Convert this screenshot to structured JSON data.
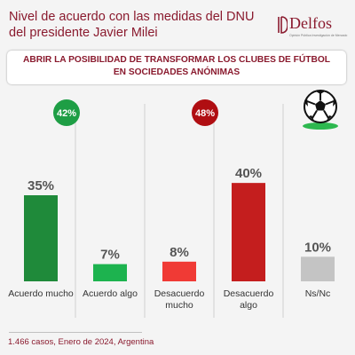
{
  "header": {
    "title": "Nivel de acuerdo con las medidas del DNU del presidente Javier Milei",
    "logo_text": "Delfos",
    "logo_tagline": "Opinión Pública Investigación de Mercado"
  },
  "subtitle": "ABRIR LA POSIBILIDAD DE TRANSFORMAR LOS CLUBES DE FÚTBOL EN SOCIEDADES ANÓNIMAS",
  "colors": {
    "title": "#8a1a2e",
    "acuerdo_mucho": "#1f8a3a",
    "acuerdo_algo": "#1db34f",
    "desacuerdo_mucho": "#f03a35",
    "desacuerdo_algo": "#c41e1e",
    "ns_nc": "#c4c4c4",
    "badge_agree": "#1e9e45",
    "badge_disagree": "#b00e12"
  },
  "icon": "soccer-ball-icon",
  "chart_data": {
    "type": "bar",
    "categories": [
      "Acuerdo mucho",
      "Acuerdo algo",
      "Desacuerdo mucho",
      "Desacuerdo algo",
      "Ns/Nc"
    ],
    "values": [
      35,
      7,
      8,
      40,
      10
    ],
    "value_labels": [
      "35%",
      "7%",
      "8%",
      "40%",
      "10%"
    ],
    "ylim": [
      0,
      45
    ],
    "grid": false,
    "group_totals": [
      {
        "label": "42%",
        "value": 42,
        "categories": [
          "Acuerdo mucho",
          "Acuerdo algo"
        ]
      },
      {
        "label": "48%",
        "value": 48,
        "categories": [
          "Desacuerdo mucho",
          "Desacuerdo algo"
        ]
      }
    ]
  },
  "footer": "1.466 casos, Enero de 2024, Argentina"
}
